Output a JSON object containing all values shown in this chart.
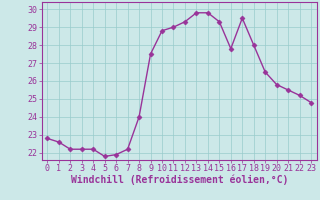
{
  "x": [
    0,
    1,
    2,
    3,
    4,
    5,
    6,
    7,
    8,
    9,
    10,
    11,
    12,
    13,
    14,
    15,
    16,
    17,
    18,
    19,
    20,
    21,
    22,
    23
  ],
  "y": [
    22.8,
    22.6,
    22.2,
    22.2,
    22.2,
    21.8,
    21.9,
    22.2,
    24.0,
    27.5,
    28.8,
    29.0,
    29.3,
    29.8,
    29.8,
    29.3,
    27.8,
    29.5,
    28.0,
    26.5,
    25.8,
    25.5,
    25.2,
    24.8
  ],
  "line_color": "#993399",
  "marker": "D",
  "markersize": 2.5,
  "linewidth": 1.0,
  "bg_color": "#cce8e8",
  "grid_color": "#99cccc",
  "xlabel": "Windchill (Refroidissement éolien,°C)",
  "xlabel_color": "#993399",
  "xlabel_fontsize": 7,
  "ytick_labels": [
    "22",
    "23",
    "24",
    "25",
    "26",
    "27",
    "28",
    "29",
    "30"
  ],
  "yticks": [
    22,
    23,
    24,
    25,
    26,
    27,
    28,
    29,
    30
  ],
  "xticks": [
    0,
    1,
    2,
    3,
    4,
    5,
    6,
    7,
    8,
    9,
    10,
    11,
    12,
    13,
    14,
    15,
    16,
    17,
    18,
    19,
    20,
    21,
    22,
    23
  ],
  "ylim": [
    21.6,
    30.4
  ],
  "xlim": [
    -0.5,
    23.5
  ],
  "tick_fontsize": 6,
  "tick_color": "#993399",
  "spine_color": "#993399"
}
